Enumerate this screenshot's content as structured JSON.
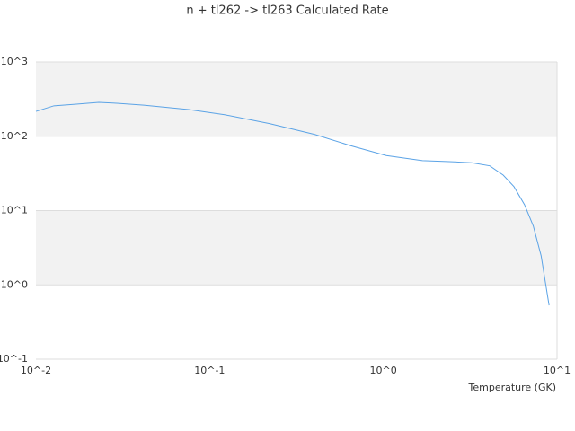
{
  "chart_data": {
    "type": "line",
    "title": "n + tl262 -> tl263 Calculated Rate",
    "x_label": "Temperature (GK)",
    "x": [
      0.01,
      0.0127,
      0.0171,
      0.023,
      0.0292,
      0.0418,
      0.0757,
      0.122,
      0.221,
      0.401,
      0.645,
      1.04,
      1.68,
      2.4,
      3.23,
      4.1,
      4.9,
      5.65,
      6.5,
      7.3,
      8.1,
      9.0
    ],
    "values": [
      216,
      257,
      270,
      286,
      278,
      262,
      229,
      195,
      148,
      106,
      75,
      55,
      47,
      45.6,
      44,
      40,
      30,
      21,
      12,
      6.2,
      2.46,
      0.53
    ],
    "color": "#5ba3e6",
    "xscale": "log",
    "yscale": "log",
    "xlim": [
      0.01,
      10
    ],
    "ylim": [
      0.1,
      1000
    ],
    "xticks": [
      {
        "value": 0.01,
        "label": "10^-2"
      },
      {
        "value": 0.1,
        "label": "10^-1"
      },
      {
        "value": 1,
        "label": "10^0"
      },
      {
        "value": 10,
        "label": "10^1"
      }
    ],
    "yticks": [
      {
        "value": 0.1,
        "label": "10^-1"
      },
      {
        "value": 1,
        "label": "10^0"
      },
      {
        "value": 10,
        "label": "10^1"
      },
      {
        "value": 100,
        "label": "10^2"
      },
      {
        "value": 1000,
        "label": "10^3"
      }
    ],
    "grid": true,
    "band_color": "#f2f2f2"
  }
}
